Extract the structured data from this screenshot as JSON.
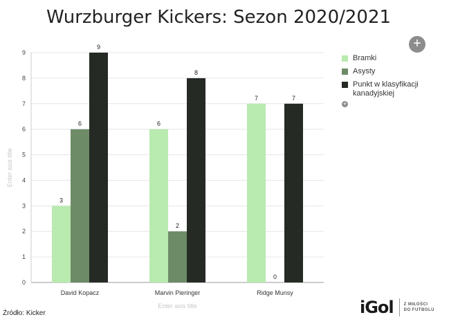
{
  "page_title": "Wurzburger Kickers: Sezon 2020/2021",
  "source_text": "Źródło: Kicker",
  "brand": {
    "logo_text": "iGol",
    "tagline_1": "Z MIŁOŚCI",
    "tagline_2": "DO FUTBOLU"
  },
  "add_icon": "plus-icon",
  "chart_data": {
    "type": "bar",
    "title": "Wurzburger Kickers: Sezon 2020/2021",
    "categories": [
      "David Kopacz",
      "Marvin Pieringer",
      "Ridge Munsy"
    ],
    "series": [
      {
        "name": "Bramki",
        "values": [
          3,
          6,
          7
        ],
        "color": "#b9eab0"
      },
      {
        "name": "Asysty",
        "values": [
          6,
          2,
          0
        ],
        "color": "#6e8b67"
      },
      {
        "name": "Punkt w klasyfikacji kanadyjskiej",
        "values": [
          9,
          8,
          7
        ],
        "color": "#252a25"
      }
    ],
    "xlabel": "Enter axis title",
    "ylabel": "Enter axis title",
    "ylim": [
      0,
      9
    ],
    "yticks": [
      0,
      1,
      2,
      3,
      4,
      5,
      6,
      7,
      8,
      9
    ],
    "grid": "horizontal",
    "legend_position": "right"
  }
}
